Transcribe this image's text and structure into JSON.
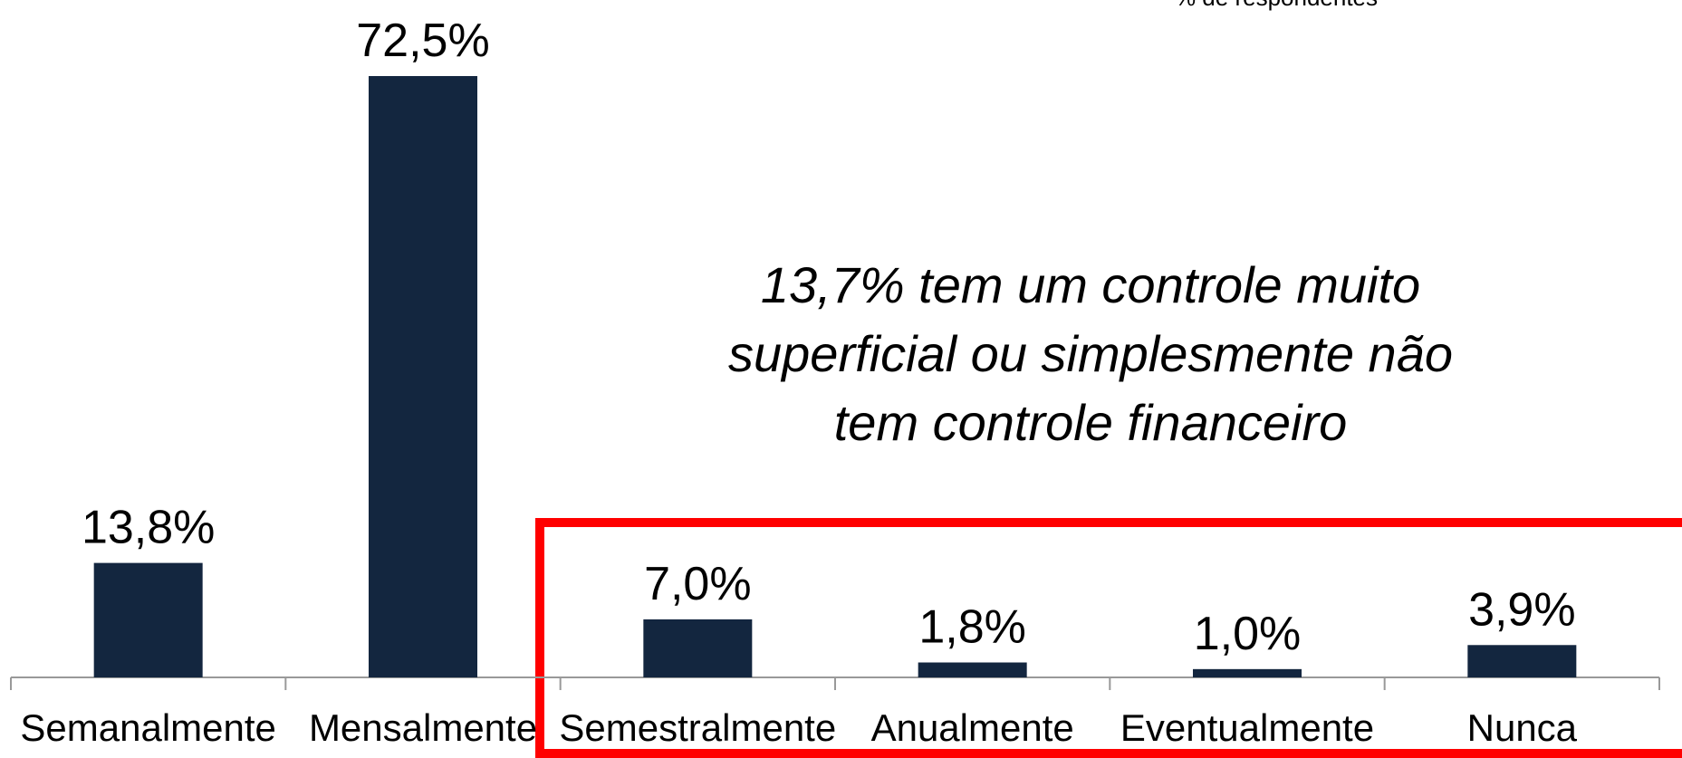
{
  "chart_data": {
    "type": "bar",
    "subtitle": "% de respondentes",
    "categories": [
      "Semanalmente",
      "Mensalmente",
      "Semestralmente",
      "Anualmente",
      "Eventualmente",
      "Nunca"
    ],
    "values": [
      13.8,
      72.5,
      7.0,
      1.8,
      1.0,
      3.9
    ],
    "value_labels": [
      "13,8%",
      "72,5%",
      "7,0%",
      "1,8%",
      "1,0%",
      "3,9%"
    ],
    "color": "#13263f",
    "annotation": [
      "13,7% tem um controle muito",
      "superficial ou simplesmente não",
      "tem controle financeiro"
    ]
  }
}
